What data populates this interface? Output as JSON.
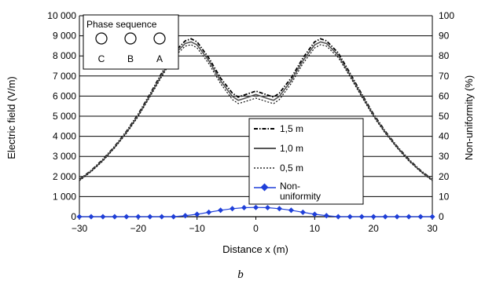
{
  "chart_data": {
    "type": "line",
    "xlabel": "Distance x   (m)",
    "ylabel_left": "Electric field   (V/m)",
    "ylabel_right": "Non-uniformity   (%)",
    "caption": "b",
    "xlim": [
      -30,
      30
    ],
    "ylim_left": [
      0,
      10000
    ],
    "ylim_right": [
      0,
      100
    ],
    "x_ticks": [
      "−30",
      "−20",
      "−10",
      "0",
      "10",
      "20",
      "30"
    ],
    "y_ticks_left": [
      "0",
      "1 000",
      "2 000",
      "3 000",
      "4 000",
      "5 000",
      "6 000",
      "7 000",
      "8 000",
      "9 000",
      "10 000"
    ],
    "y_ticks_right": [
      "0",
      "10",
      "20",
      "30",
      "40",
      "50",
      "60",
      "70",
      "80",
      "90",
      "100"
    ],
    "grid": "horizontal",
    "phase_box": {
      "title": "Phase sequence",
      "labels": [
        "C",
        "B",
        "A"
      ]
    },
    "legend_position": "center-right",
    "series": [
      {
        "name": "1,5 m",
        "axis": "left",
        "style": "dash-dot",
        "x": [
          -30,
          -28,
          -26,
          -24,
          -22,
          -20,
          -18,
          -16,
          -14,
          -12,
          -11,
          -10,
          -8,
          -6,
          -4,
          -3,
          -2,
          0,
          2,
          3,
          4,
          6,
          8,
          10,
          11,
          12,
          14,
          16,
          18,
          20,
          22,
          24,
          26,
          28,
          30
        ],
        "values": [
          1850,
          2300,
          2850,
          3500,
          4250,
          5100,
          6100,
          7150,
          8150,
          8750,
          8850,
          8700,
          7900,
          6900,
          6150,
          5950,
          6050,
          6250,
          6050,
          5950,
          6150,
          6900,
          7900,
          8700,
          8850,
          8750,
          8150,
          7150,
          6100,
          5100,
          4250,
          3500,
          2850,
          2300,
          1850
        ]
      },
      {
        "name": "1,0 m",
        "axis": "left",
        "style": "solid",
        "x": [
          -30,
          -28,
          -26,
          -24,
          -22,
          -20,
          -18,
          -16,
          -14,
          -12,
          -11,
          -10,
          -8,
          -6,
          -4,
          -3,
          -2,
          0,
          2,
          3,
          4,
          6,
          8,
          10,
          11,
          12,
          14,
          16,
          18,
          20,
          22,
          24,
          26,
          28,
          30
        ],
        "values": [
          1820,
          2270,
          2810,
          3460,
          4200,
          5040,
          6030,
          7060,
          8030,
          8620,
          8700,
          8550,
          7760,
          6760,
          5990,
          5790,
          5880,
          6080,
          5880,
          5790,
          5990,
          6760,
          7760,
          8550,
          8700,
          8620,
          8030,
          7060,
          6030,
          5040,
          4200,
          3460,
          2810,
          2270,
          1820
        ]
      },
      {
        "name": "0,5 m",
        "axis": "left",
        "style": "dotted",
        "x": [
          -30,
          -28,
          -26,
          -24,
          -22,
          -20,
          -18,
          -16,
          -14,
          -12,
          -11,
          -10,
          -8,
          -6,
          -4,
          -3,
          -2,
          0,
          2,
          3,
          4,
          6,
          8,
          10,
          11,
          12,
          14,
          16,
          18,
          20,
          22,
          24,
          26,
          28,
          30
        ],
        "values": [
          1790,
          2240,
          2770,
          3420,
          4150,
          4980,
          5960,
          6970,
          7920,
          8490,
          8560,
          8400,
          7620,
          6620,
          5830,
          5630,
          5710,
          5900,
          5710,
          5630,
          5830,
          6620,
          7620,
          8400,
          8560,
          8490,
          7920,
          6970,
          5960,
          4980,
          4150,
          3420,
          2770,
          2240,
          1790
        ]
      },
      {
        "name": "Non-uniformity",
        "axis": "right",
        "style": "marker-diamond",
        "color": "#1f3fd9",
        "x": [
          -30,
          -28,
          -26,
          -24,
          -22,
          -20,
          -18,
          -16,
          -14,
          -12,
          -10,
          -8,
          -6,
          -4,
          -2,
          0,
          2,
          4,
          6,
          8,
          10,
          12,
          14,
          16,
          18,
          20,
          22,
          24,
          26,
          28,
          30
        ],
        "values": [
          0,
          0,
          0,
          0,
          0,
          0,
          0,
          0,
          0,
          0.5,
          1.2,
          2.2,
          3.2,
          4.0,
          4.5,
          4.6,
          4.5,
          4.0,
          3.2,
          2.2,
          1.2,
          0.5,
          0,
          0,
          0,
          0,
          0,
          0,
          0,
          0,
          0
        ]
      }
    ]
  }
}
